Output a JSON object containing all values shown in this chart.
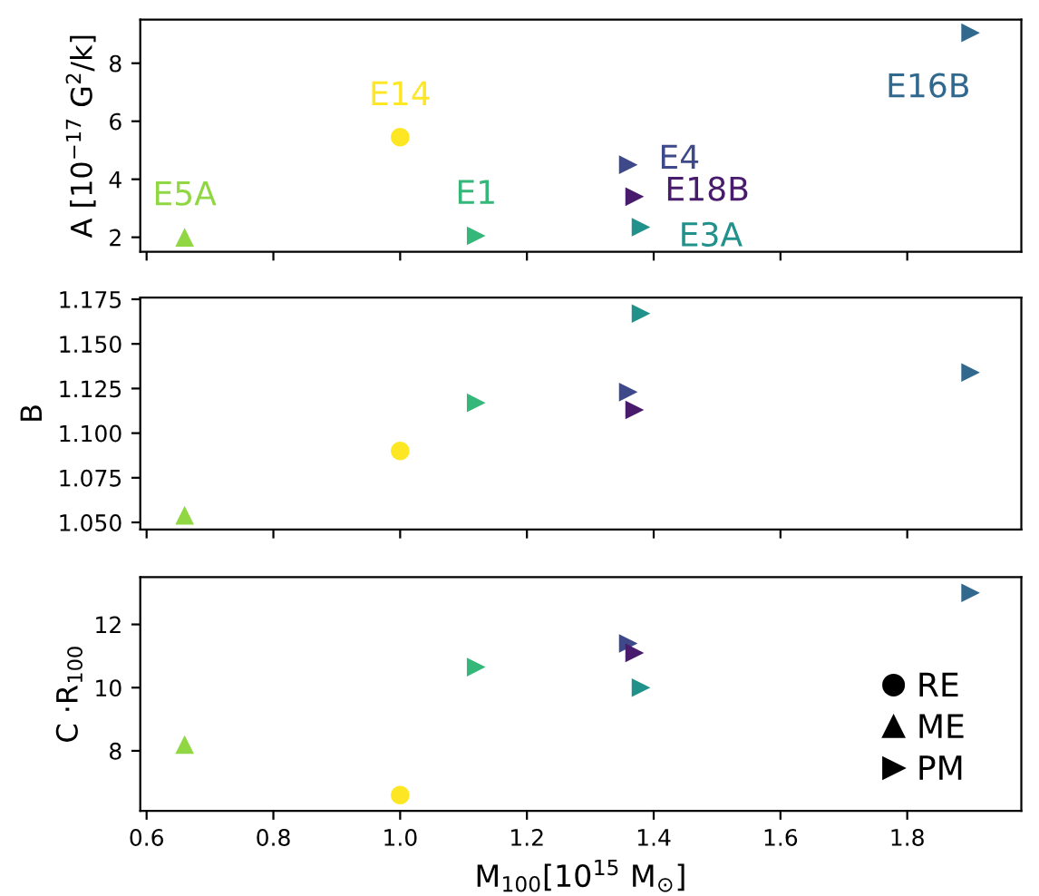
{
  "chart_data": [
    {
      "type": "scatter",
      "ylabel": "A [10$^{−17}$ G$^{2}$/k]",
      "xlim": [
        0.59,
        1.98
      ],
      "xticks": [
        0.6,
        0.8,
        1,
        1.2,
        1.4,
        1.6,
        1.8
      ],
      "ylim": [
        1.5,
        9.5
      ],
      "yticks": [
        2,
        4,
        6,
        8
      ],
      "tick_labels": "y",
      "grid": false,
      "series": [
        {
          "name": "E5A",
          "color": "#90d743",
          "marker": "triangle",
          "x": [
            0.66
          ],
          "values": [
            2.0
          ]
        },
        {
          "name": "E14",
          "color": "#fde725",
          "marker": "circle",
          "x": [
            1.0
          ],
          "values": [
            5.45
          ]
        },
        {
          "name": "E1",
          "color": "#35b779",
          "marker": "triangle_right",
          "x": [
            1.12
          ],
          "values": [
            2.05
          ]
        },
        {
          "name": "E4",
          "color": "#3e4989",
          "marker": "triangle_right",
          "x": [
            1.36
          ],
          "values": [
            4.5
          ]
        },
        {
          "name": "E18B",
          "color": "#481b6d",
          "marker": "triangle_right",
          "x": [
            1.37
          ],
          "values": [
            3.4
          ]
        },
        {
          "name": "E3A",
          "color": "#21918c",
          "marker": "triangle_right",
          "x": [
            1.38
          ],
          "values": [
            2.35
          ]
        },
        {
          "name": "E16B",
          "color": "#31688e",
          "marker": "triangle_right",
          "x": [
            1.9
          ],
          "values": [
            9.05
          ]
        }
      ]
    },
    {
      "type": "scatter",
      "ylabel": "B",
      "xlim": [
        0.59,
        1.98
      ],
      "xticks": [
        0.6,
        0.8,
        1,
        1.2,
        1.4,
        1.6,
        1.8
      ],
      "ylim": [
        1.046,
        1.176
      ],
      "yticks": [
        {
          "value": 1.05,
          "label": "1.050"
        },
        {
          "value": 1.075,
          "label": "1.075"
        },
        {
          "value": 1.1,
          "label": "1.100"
        },
        {
          "value": 1.125,
          "label": "1.125"
        },
        {
          "value": 1.15,
          "label": "1.150"
        },
        {
          "value": 1.175,
          "label": "1.175"
        }
      ],
      "tick_labels": "y",
      "grid": false,
      "series": [
        {
          "marker": "circle",
          "colors": [
            "#fde725"
          ],
          "x": [
            1.0
          ],
          "values": [
            1.09
          ]
        },
        {
          "marker": "triangle",
          "colors": [
            "#90d743"
          ],
          "x": [
            0.66
          ],
          "values": [
            1.054
          ]
        },
        {
          "marker": "triangle_right",
          "colors": [
            "#35b779",
            "#3e4989",
            "#481b6d",
            "#21918c",
            "#31688e"
          ],
          "x": [
            1.12,
            1.36,
            1.37,
            1.38,
            1.9
          ],
          "values": [
            1.117,
            1.123,
            1.113,
            1.167,
            1.134
          ]
        }
      ]
    },
    {
      "type": "scatter",
      "ylabel": "C ·R$_{100}$",
      "xlabel": "M$_{100}$[10$^{15}$ M$_{⊙}$]",
      "xlim": [
        0.59,
        1.98
      ],
      "xticks": [
        0.6,
        0.8,
        {
          "value": 1.0,
          "label": "1.0"
        },
        1.2,
        1.4,
        1.6,
        1.8
      ],
      "ylim": [
        6.1,
        13.5
      ],
      "yticks": [
        8,
        10,
        12
      ],
      "grid": false,
      "series": [
        {
          "marker": "circle",
          "colors": [
            "#fde725"
          ],
          "x": [
            1.0
          ],
          "values": [
            6.6
          ]
        },
        {
          "marker": "triangle",
          "colors": [
            "#90d743"
          ],
          "x": [
            0.66
          ],
          "values": [
            8.2
          ]
        },
        {
          "marker": "triangle_right",
          "colors": [
            "#35b779",
            "#3e4989",
            "#481b6d",
            "#21918c",
            "#31688e"
          ],
          "x": [
            1.12,
            1.36,
            1.37,
            1.38,
            1.9
          ],
          "values": [
            10.65,
            11.4,
            11.1,
            10.0,
            13.0
          ]
        }
      ],
      "annotations": [
        "RE",
        "ME",
        "PM"
      ]
    }
  ]
}
